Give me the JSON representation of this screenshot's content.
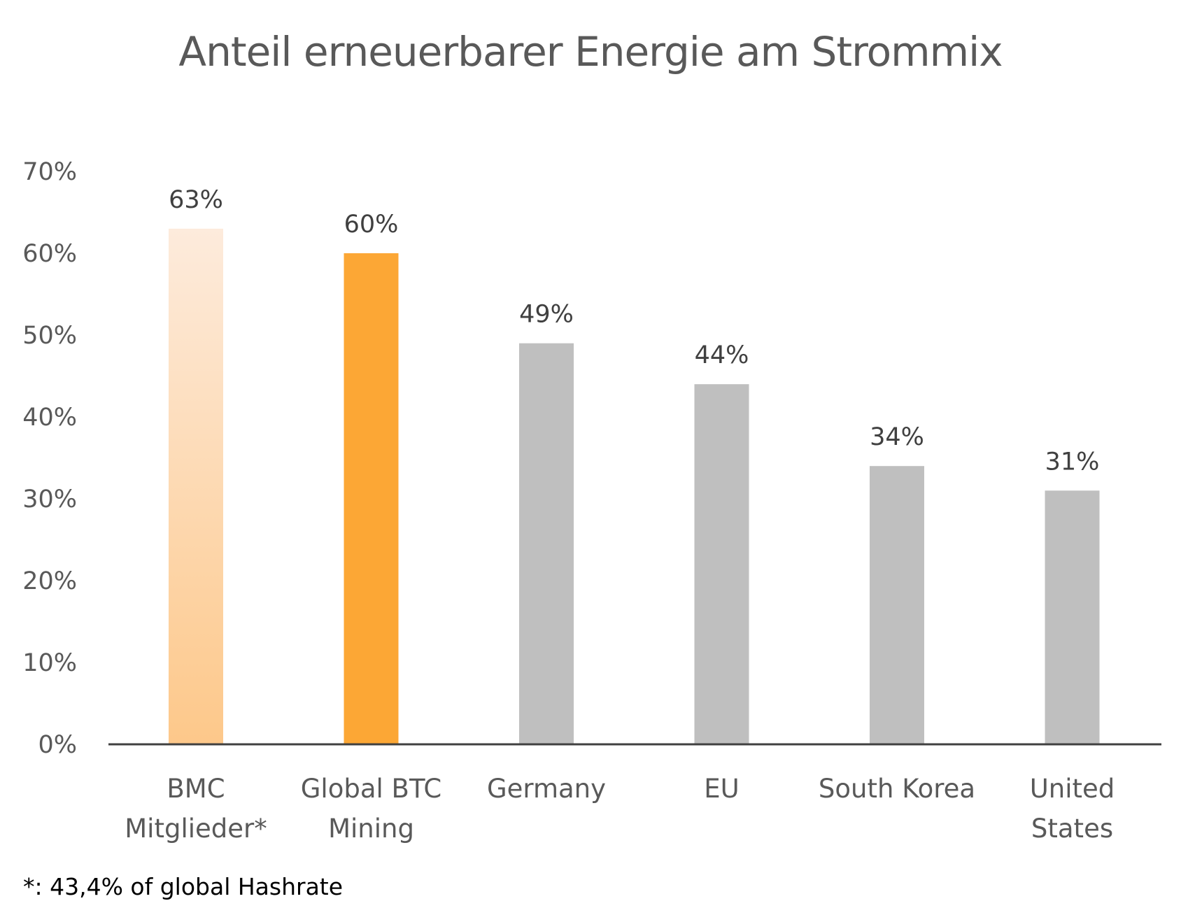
{
  "chart_data": {
    "type": "bar",
    "title": "Anteil erneuerbarer Energie am Strommix",
    "xlabel": "",
    "ylabel": "",
    "ylim": [
      0,
      70
    ],
    "yticks": [
      0,
      10,
      20,
      30,
      40,
      50,
      60,
      70
    ],
    "ytick_labels": [
      "0%",
      "10%",
      "20%",
      "30%",
      "40%",
      "50%",
      "60%",
      "70%"
    ],
    "grid": false,
    "legend": "none",
    "categories": [
      [
        "BMC",
        "Mitglieder*"
      ],
      [
        "Global BTC",
        "Mining"
      ],
      [
        "Germany"
      ],
      [
        "EU"
      ],
      [
        "South Korea"
      ],
      [
        "United",
        "States"
      ]
    ],
    "values": [
      63,
      60,
      49,
      44,
      34,
      31
    ],
    "data_labels": [
      "63%",
      "60%",
      "49%",
      "44%",
      "34%",
      "31%"
    ],
    "bar_colors": [
      "gradient:#fde9d9-#fdc98a",
      "#fca735",
      "#bfbfbf",
      "#bfbfbf",
      "#bfbfbf",
      "#bfbfbf"
    ],
    "footnote": "*: 43,4% of global Hashrate"
  }
}
